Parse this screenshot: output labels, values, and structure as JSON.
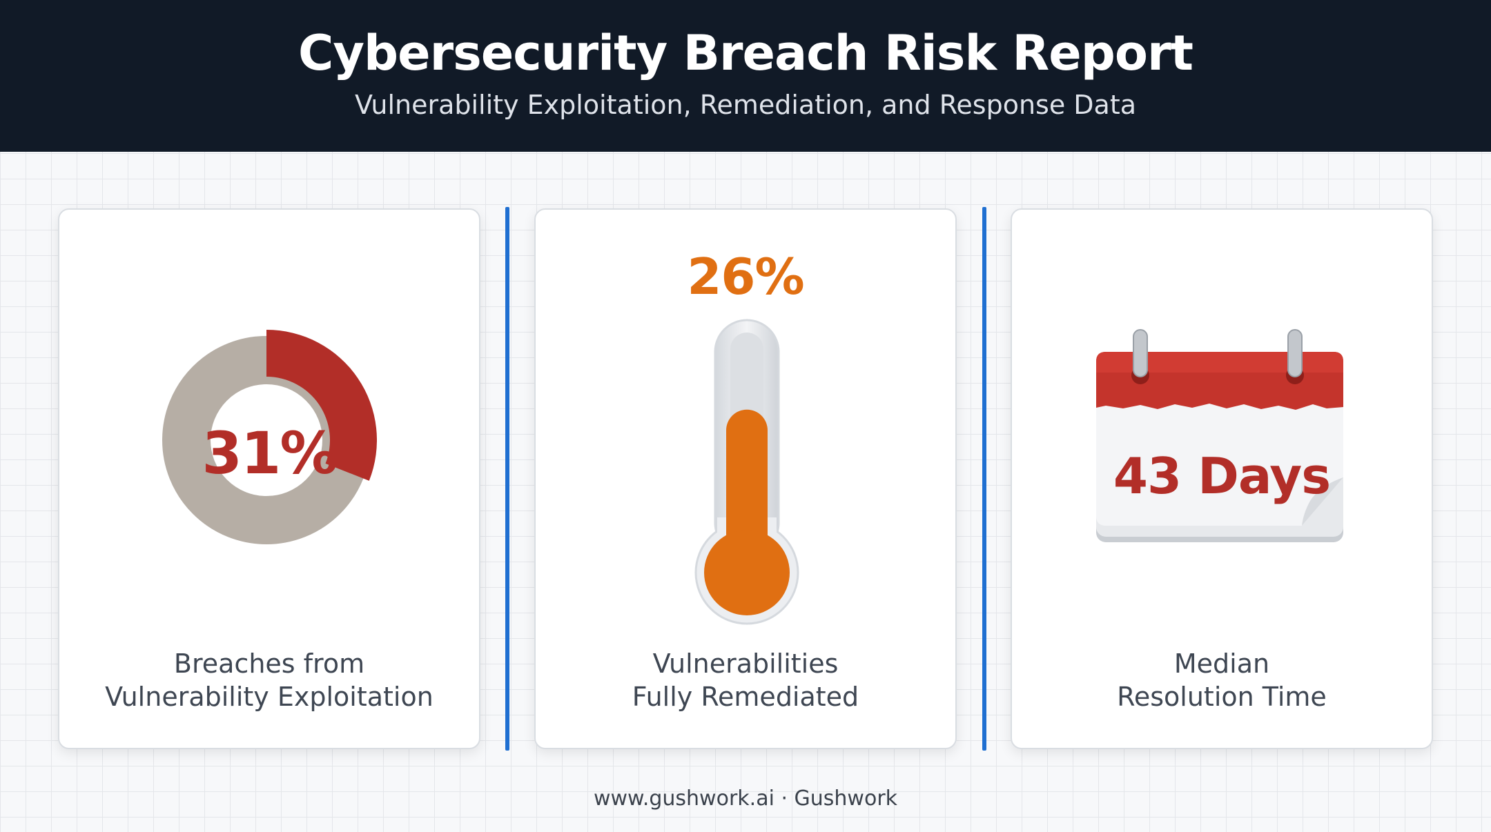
{
  "header": {
    "title": "Cybersecurity Breach Risk Report",
    "subtitle": "Vulnerability Exploitation, Remediation, and Response Data"
  },
  "cards": [
    {
      "value_text": "31%",
      "value": 0.31,
      "label_line1": "Breaches from",
      "label_line2": "Vulnerability Exploitation",
      "icon": "donut-chart-icon"
    },
    {
      "value_text": "26%",
      "value": 0.26,
      "label_line1": "Vulnerabilities",
      "label_line2": "Fully Remediated",
      "icon": "thermometer-icon"
    },
    {
      "value_text": "43 Days",
      "label_line1": "Median",
      "label_line2": "Resolution Time",
      "icon": "calendar-icon"
    }
  ],
  "footer": {
    "text": "www.gushwork.ai · Gushwork"
  },
  "colors": {
    "header_bg": "#111a27",
    "accent_red": "#b22e28",
    "accent_orange": "#e06f12",
    "donut_track": "#b6aea5",
    "divider_blue": "#1f6fd1"
  }
}
